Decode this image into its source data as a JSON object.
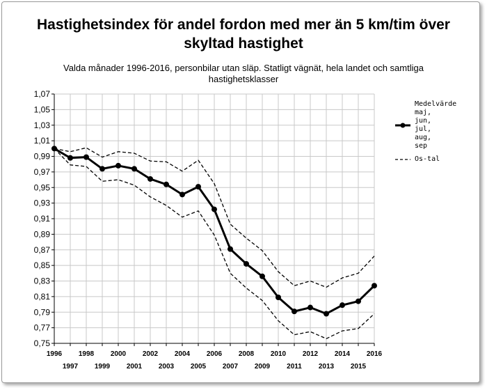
{
  "chart_data": {
    "type": "line",
    "title": "Hastighetsindex för andel fordon med mer än 5 km/tim över skyltad hastighet",
    "subtitle": "Valda månader 1996-2016, personbilar utan släp. Statligt vägnät, hela landet och samtliga hastighetsklasser",
    "xlabel": "",
    "ylabel": "",
    "x": [
      1996,
      1997,
      1998,
      1999,
      2000,
      2001,
      2002,
      2003,
      2004,
      2005,
      2006,
      2007,
      2008,
      2009,
      2010,
      2011,
      2012,
      2013,
      2014,
      2015,
      2016
    ],
    "x_tick_labels_row1": [
      "1996",
      "1998",
      "2000",
      "2002",
      "2004",
      "2006",
      "2008",
      "2010",
      "2012",
      "2014",
      "2016"
    ],
    "x_tick_labels_row2": [
      "1997",
      "1999",
      "2001",
      "2003",
      "2005",
      "2007",
      "2009",
      "2011",
      "2013",
      "2015"
    ],
    "ylim": [
      0.75,
      1.07
    ],
    "y_ticks": [
      "0,75",
      "0,77",
      "0,79",
      "0,81",
      "0,83",
      "0,85",
      "0,87",
      "0,89",
      "0,91",
      "0,93",
      "0,95",
      "0,97",
      "0,99",
      "1,01",
      "1,03",
      "1,05",
      "1,07"
    ],
    "grid": true,
    "legend_position": "right",
    "series": [
      {
        "name": "Medelvärde maj, jun, jul, aug, sep",
        "style": "solid-markers",
        "color": "#000000",
        "values": [
          1.0,
          0.988,
          0.989,
          0.974,
          0.978,
          0.974,
          0.961,
          0.954,
          0.941,
          0.951,
          0.922,
          0.871,
          0.852,
          0.836,
          0.809,
          0.791,
          0.796,
          0.788,
          0.799,
          0.804,
          0.824
        ]
      },
      {
        "name": "Os-tal",
        "style": "dashed",
        "color": "#000000",
        "values": [
          1.0,
          0.996,
          1.001,
          0.989,
          0.996,
          0.994,
          0.984,
          0.983,
          0.971,
          0.985,
          0.955,
          0.903,
          0.885,
          0.869,
          0.842,
          0.824,
          0.83,
          0.822,
          0.834,
          0.84,
          0.862
        ]
      },
      {
        "name": "",
        "style": "dashed",
        "color": "#000000",
        "values": [
          1.0,
          0.979,
          0.977,
          0.958,
          0.96,
          0.953,
          0.938,
          0.927,
          0.912,
          0.92,
          0.889,
          0.84,
          0.821,
          0.805,
          0.779,
          0.761,
          0.765,
          0.756,
          0.766,
          0.769,
          0.788
        ]
      }
    ]
  },
  "legend": {
    "item1_text": "Medelvärde\nmaj,\njun,\njul,\naug,\nsep",
    "item2_text": "Os-tal"
  }
}
